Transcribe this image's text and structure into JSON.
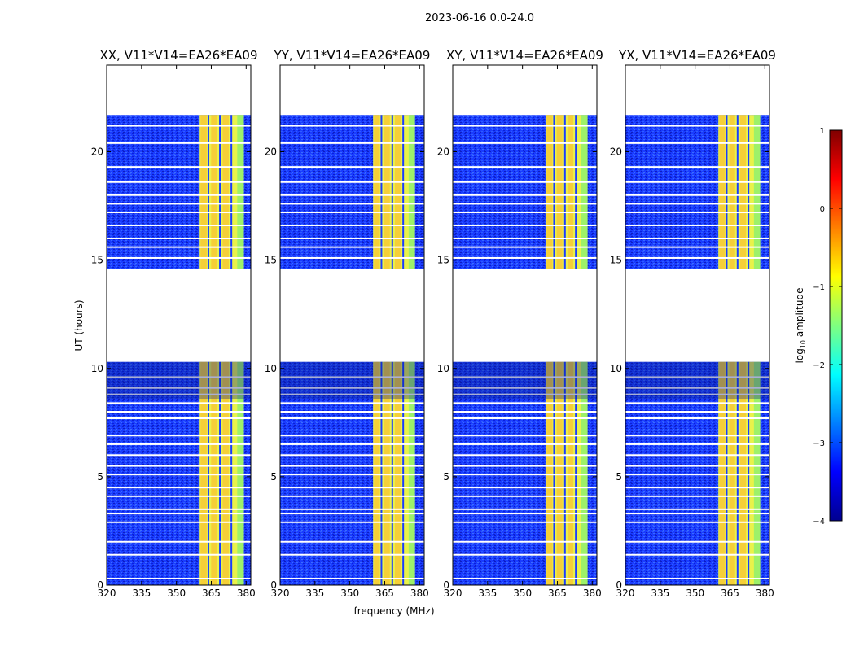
{
  "chart_data": {
    "type": "heatmap",
    "suptitle": "2023-06-16 0.0-24.0",
    "xlabel": "frequency (MHz)",
    "ylabel": "UT (hours)",
    "xlim": [
      320,
      382
    ],
    "ylim": [
      0,
      24
    ],
    "xticks": [
      320,
      335,
      350,
      365,
      380
    ],
    "yticks": [
      0,
      5,
      10,
      15,
      20
    ],
    "panels": [
      {
        "title": "XX, V11*V14=EA26*EA09",
        "band_start_mhz": 360,
        "band_end_mhz": 379
      },
      {
        "title": "YY, V11*V14=EA26*EA09",
        "band_start_mhz": 360,
        "band_end_mhz": 378
      },
      {
        "title": "XY, V11*V14=EA26*EA09",
        "band_start_mhz": 360,
        "band_end_mhz": 378
      },
      {
        "title": "YX, V11*V14=EA26*EA09",
        "band_start_mhz": 360,
        "band_end_mhz": 378
      }
    ],
    "data_segments_hours": [
      [
        0,
        10.3
      ],
      [
        14.6,
        21.7
      ]
    ],
    "flagged_rows_hours": [
      0.3,
      1.4,
      2.0,
      2.9,
      3.3,
      3.5,
      4.1,
      4.5,
      5.1,
      5.5,
      6.0,
      6.5,
      6.9,
      7.7,
      8.0,
      8.4,
      8.8,
      9.1,
      9.6,
      15.1,
      15.6,
      16.0,
      16.6,
      17.2,
      17.6,
      18.0,
      18.6,
      19.3,
      20.4,
      21.2
    ],
    "colorbar": {
      "label": "log",
      "label_sub": "10",
      "label_rest": " amplitude",
      "ticks": [
        1,
        0,
        -1,
        -2,
        -3,
        -4
      ],
      "tick_labels": [
        "1",
        "0",
        "−1",
        "−2",
        "−3",
        "−4"
      ],
      "vmin": -4,
      "vmax": 1,
      "colormap": "jet"
    }
  }
}
